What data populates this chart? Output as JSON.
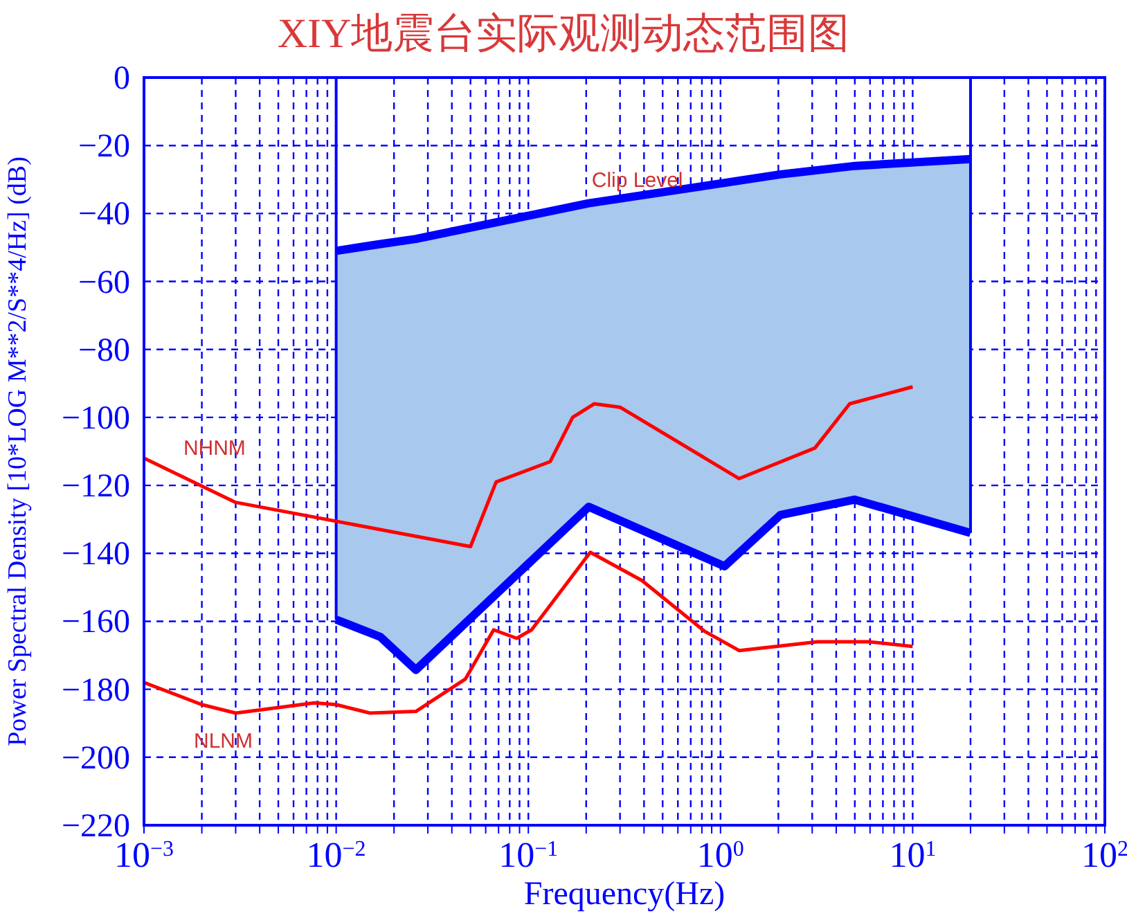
{
  "chart_data": {
    "type": "line",
    "title": "XIY地震台实际观测动态范围图",
    "xlabel": "Frequency(Hz)",
    "ylabel": "Power Spectral Density [10*LOG M**2/S**4/Hz] (dB)",
    "log": "x",
    "grid": true,
    "marker": "none",
    "line_style": "solid",
    "xlim": [
      0.001,
      100
    ],
    "xticks": [
      {
        "value": 0.001,
        "label": "10$^{−3}$"
      },
      {
        "value": 0.002,
        "label": null
      },
      {
        "value": 0.003,
        "label": null
      },
      {
        "value": 0.004,
        "label": null
      },
      {
        "value": 0.005,
        "label": null
      },
      {
        "value": 0.006,
        "label": null
      },
      {
        "value": 0.007,
        "label": null
      },
      {
        "value": 0.008,
        "label": null
      },
      {
        "value": 0.009,
        "label": null
      },
      {
        "value": 0.01,
        "label": "10$^{−2}$"
      },
      {
        "value": 0.02,
        "label": null
      },
      {
        "value": 0.03,
        "label": null
      },
      {
        "value": 0.04,
        "label": null
      },
      {
        "value": 0.05,
        "label": null
      },
      {
        "value": 0.06,
        "label": null
      },
      {
        "value": 0.07,
        "label": null
      },
      {
        "value": 0.08,
        "label": null
      },
      {
        "value": 0.09,
        "label": null
      },
      {
        "value": 0.1,
        "label": "10$^{−1}$"
      },
      {
        "value": 0.2,
        "label": null
      },
      {
        "value": 0.3,
        "label": null
      },
      {
        "value": 0.4,
        "label": null
      },
      {
        "value": 0.5,
        "label": null
      },
      {
        "value": 0.6,
        "label": null
      },
      {
        "value": 0.7,
        "label": null
      },
      {
        "value": 0.8,
        "label": null
      },
      {
        "value": 0.9,
        "label": null
      },
      {
        "value": 1,
        "label": "10$^{0}$"
      },
      {
        "value": 2,
        "label": null
      },
      {
        "value": 3,
        "label": null
      },
      {
        "value": 4,
        "label": null
      },
      {
        "value": 5,
        "label": null
      },
      {
        "value": 6,
        "label": null
      },
      {
        "value": 7,
        "label": null
      },
      {
        "value": 8,
        "label": null
      },
      {
        "value": 9,
        "label": null
      },
      {
        "value": 10,
        "label": "10$^{1}$"
      },
      {
        "value": 20,
        "label": null
      },
      {
        "value": 30,
        "label": null
      },
      {
        "value": 40,
        "label": null
      },
      {
        "value": 50,
        "label": null
      },
      {
        "value": 60,
        "label": null
      },
      {
        "value": 70,
        "label": null
      },
      {
        "value": 80,
        "label": null
      },
      {
        "value": 90,
        "label": null
      },
      {
        "value": 100,
        "label": "10$^{2}$"
      }
    ],
    "ylim": [
      -220,
      0
    ],
    "yticks": [
      -220,
      -200,
      -180,
      -160,
      -140,
      -120,
      -100,
      -80,
      -60,
      -40,
      -20,
      0
    ],
    "series": [
      {
        "color": "#0000ff",
        "x": [
          0.01,
          0.017,
          0.026,
          0.206,
          1.05,
          2.05,
          5,
          20
        ],
        "values": [
          -51,
          -49,
          -47.5,
          -37,
          -31,
          -28.5,
          -26,
          -24
        ],
        "lower": [
          -159.5,
          -164.6,
          -174.3,
          -126.3,
          -143.8,
          -128.7,
          -124.2,
          -134
        ],
        "upper": [
          -51,
          -49,
          -47.5,
          -37,
          -31,
          -28.5,
          -26,
          -24
        ]
      },
      {
        "color": "#0000ff",
        "x": [
          0.01,
          0.017,
          0.026,
          0.206,
          1.05,
          2.05,
          5,
          20
        ],
        "values": [
          -159.5,
          -164.6,
          -174.3,
          -126.3,
          -143.8,
          -128.7,
          -124.2,
          -134
        ]
      },
      {
        "color": "#ff0000",
        "x": [
          0.001,
          0.003,
          0.05,
          0.068,
          0.13,
          0.17,
          0.22,
          0.3,
          1.25,
          3.1,
          4.7,
          10
        ],
        "values": [
          -112,
          -125,
          -138,
          -119,
          -113,
          -100,
          -96,
          -97,
          -118,
          -109,
          -96,
          -91
        ]
      },
      {
        "color": "#ff0000",
        "x": [
          0.001,
          0.002,
          0.003,
          0.0077,
          0.01,
          0.015,
          0.026,
          0.047,
          0.066,
          0.087,
          0.104,
          0.21,
          0.39,
          0.83,
          1.25,
          3.2,
          5.9,
          10
        ],
        "values": [
          -178,
          -184.5,
          -187,
          -184,
          -184.5,
          -187,
          -186.5,
          -177,
          -162.5,
          -165,
          -162.5,
          -139.7,
          -148,
          -163,
          -168.6,
          -166,
          -166,
          -167.4
        ]
      }
    ],
    "ref_lines": [
      {
        "axis": "x",
        "value": 0.01,
        "color": "#0000ff"
      },
      {
        "axis": "x",
        "value": 20,
        "color": "#0000ff"
      }
    ],
    "annotations": [
      {
        "text": "Clip Level",
        "x": 0.2,
        "y": -37
      },
      {
        "text": "NHNM",
        "x": 0.0015,
        "y": -116
      },
      {
        "text": "NLNM",
        "x": 0.0017,
        "y": -185
      }
    ]
  }
}
